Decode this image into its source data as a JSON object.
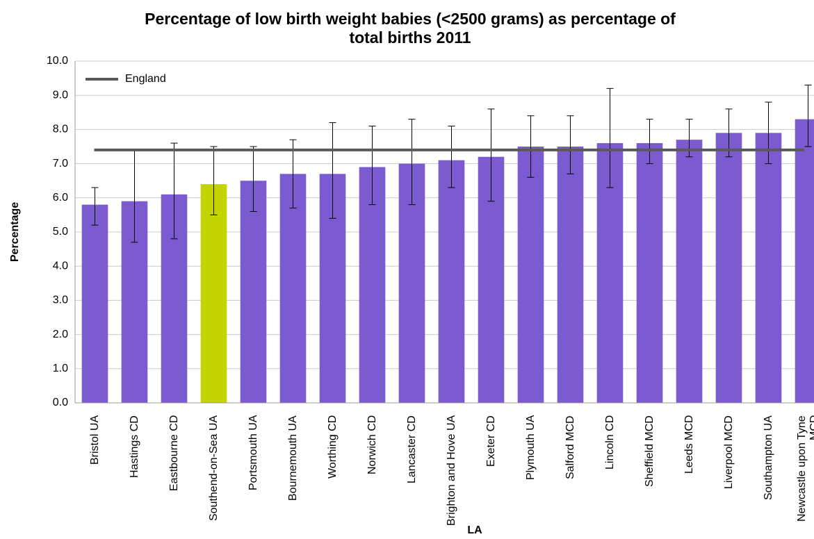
{
  "chart_data": {
    "type": "bar",
    "title": "Percentage of low birth weight babies (<2500 grams) as percentage of total births 2011",
    "x_label": "LA",
    "y_label": "Percentage",
    "categories": [
      "Bristol UA",
      "Hastings CD",
      "Eastbourne CD",
      "Southend-on-Sea UA",
      "Portsmouth UA",
      "Bournemouth UA",
      "Worthing CD",
      "Norwich CD",
      "Lancaster CD",
      "Brighton and Hove UA",
      "Exeter CD",
      "Plymouth UA",
      "Salford MCD",
      "Lincoln CD",
      "Sheffield MCD",
      "Leeds MCD",
      "Liverpool MCD",
      "Southampton UA",
      "Newcastle upon Tyne MCD"
    ],
    "series": [
      {
        "values": [
          5.8,
          5.9,
          6.1,
          6.4,
          6.5,
          6.7,
          6.7,
          6.9,
          7.0,
          7.1,
          7.2,
          7.5,
          7.5,
          7.6,
          7.6,
          7.7,
          7.9,
          7.9,
          8.3
        ],
        "lower": [
          5.2,
          4.7,
          4.8,
          5.5,
          5.6,
          5.7,
          5.4,
          5.8,
          5.8,
          6.3,
          5.9,
          6.6,
          6.7,
          6.3,
          7.0,
          7.2,
          7.2,
          7.0,
          7.5
        ],
        "upper": [
          6.3,
          7.4,
          7.6,
          7.5,
          7.5,
          7.7,
          8.2,
          8.1,
          8.3,
          8.1,
          8.6,
          8.4,
          8.4,
          9.2,
          8.3,
          8.3,
          8.6,
          8.8,
          9.3
        ],
        "colors": [
          "#7b5bcf",
          "#7b5bcf",
          "#7b5bcf",
          "#c5d400",
          "#7b5bcf",
          "#7b5bcf",
          "#7b5bcf",
          "#7b5bcf",
          "#7b5bcf",
          "#7b5bcf",
          "#7b5bcf",
          "#7b5bcf",
          "#7b5bcf",
          "#7b5bcf",
          "#7b5bcf",
          "#7b5bcf",
          "#7b5bcf",
          "#7b5bcf",
          "#7b5bcf"
        ]
      }
    ],
    "reference_line": {
      "name": "England",
      "value": 7.4,
      "color": "#595959"
    },
    "legend": "top-left",
    "ylim": [
      0,
      10
    ],
    "yticks": [
      {
        "value": 0,
        "label": "0.0"
      },
      {
        "value": 1,
        "label": "1.0"
      },
      {
        "value": 2,
        "label": "2.0"
      },
      {
        "value": 3,
        "label": "3.0"
      },
      {
        "value": 4,
        "label": "4.0"
      },
      {
        "value": 5,
        "label": "5.0"
      },
      {
        "value": 6,
        "label": "6.0"
      },
      {
        "value": 7,
        "label": "7.0"
      },
      {
        "value": 8,
        "label": "8.0"
      },
      {
        "value": 9,
        "label": "9.0"
      },
      {
        "value": 10,
        "label": "10.0"
      }
    ],
    "grid": true
  }
}
